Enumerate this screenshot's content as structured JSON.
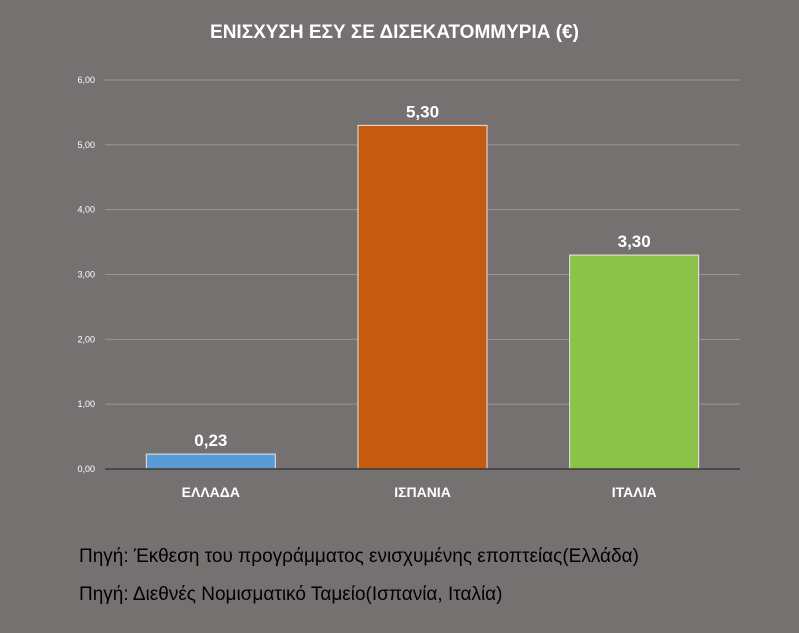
{
  "chart_data": {
    "type": "bar",
    "title": "ΕΝΙΣΧΥΣΗ ΕΣΥ ΣΕ ΔΙΣΕΚΑΤΟΜΜΥΡΙΑ (€)",
    "categories": [
      "ΕΛΛΑΔΑ",
      "ΙΣΠΑΝΙΑ",
      "ΙΤΑΛΙΑ"
    ],
    "values": [
      0.23,
      5.3,
      3.3
    ],
    "data_labels": [
      "0,23",
      "5,30",
      "3,30"
    ],
    "colors": [
      "#5b9bd5",
      "#c55a11",
      "#8bc34a"
    ],
    "ylim": [
      0,
      6
    ],
    "yticks": [
      "0,00",
      "1,00",
      "2,00",
      "3,00",
      "4,00",
      "5,00",
      "6,00"
    ],
    "xlabel": "",
    "ylabel": "",
    "grid": true,
    "legend": "none"
  },
  "sources": [
    "Πηγή: Έκθεση του προγράμματος ενισχυμένης εποπτείας(Ελλάδα)",
    "Πηγή: Διεθνές Νομισματικό Ταμείο(Ισπανία, Ιταλία)"
  ],
  "colors": {
    "background": "#767171",
    "gridline": "#9a9696",
    "axis": "#3a3a3a",
    "text": "#ffffff"
  }
}
